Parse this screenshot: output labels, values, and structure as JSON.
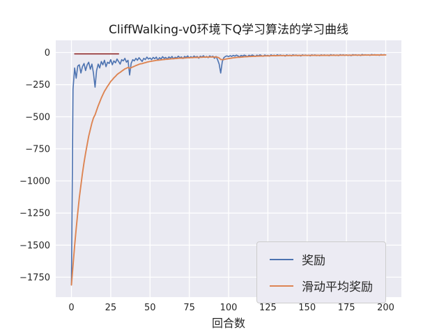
{
  "chart_data": {
    "type": "line",
    "title": "CliffWalking-v0环境下Q学习算法的学习曲线",
    "xlabel": "回合数",
    "ylabel": "",
    "xlim": [
      -10,
      210
    ],
    "ylim": [
      -1905,
      95
    ],
    "xticks": [
      0,
      25,
      50,
      75,
      100,
      125,
      150,
      175,
      200
    ],
    "yticks": [
      0,
      -250,
      -500,
      -750,
      -1000,
      -1250,
      -1500,
      -1750
    ],
    "grid": true,
    "legend_position": "lower right",
    "colors": {
      "axes_background": "#eaeaf2",
      "grid": "#ffffff"
    },
    "series": [
      {
        "name": "奖励",
        "color": "#4c72b0",
        "x_start": 0,
        "x_step": 1,
        "values": [
          -1810,
          -285,
          -120,
          -200,
          -105,
          -95,
          -160,
          -110,
          -85,
          -140,
          -95,
          -75,
          -130,
          -90,
          -160,
          -270,
          -140,
          -90,
          -120,
          -70,
          -95,
          -60,
          -110,
          -75,
          -85,
          -55,
          -95,
          -65,
          -80,
          -50,
          -70,
          -90,
          -55,
          -65,
          -45,
          -75,
          -60,
          -175,
          -85,
          -55,
          -65,
          -45,
          -60,
          -40,
          -55,
          -70,
          -45,
          -55,
          -35,
          -50,
          -42,
          -55,
          -38,
          -48,
          -35,
          -60,
          -40,
          -50,
          -32,
          -45,
          -38,
          -52,
          -34,
          -44,
          -30,
          -48,
          -36,
          -42,
          -28,
          -40,
          -34,
          -46,
          -30,
          -38,
          -26,
          -42,
          -32,
          -40,
          -27,
          -36,
          -30,
          -44,
          -28,
          -35,
          -25,
          -38,
          -30,
          -40,
          -26,
          -34,
          -28,
          -45,
          -30,
          -55,
          -90,
          -160,
          -70,
          -40,
          -30,
          -26,
          -32,
          -24,
          -30,
          -22,
          -28,
          -20,
          -26,
          -34,
          -22,
          -28,
          -20,
          -25,
          -32,
          -21,
          -27,
          -19,
          -24,
          -30,
          -20,
          -26,
          -18,
          -23,
          -29,
          -19,
          -25,
          -21,
          -28,
          -18,
          -24,
          -20,
          -26,
          -17,
          -23,
          -19,
          -25,
          -21,
          -28,
          -18,
          -24,
          -20,
          -26,
          -17,
          -22,
          -19,
          -25,
          -21,
          -27,
          -17,
          -23,
          -19,
          -24,
          -20,
          -26,
          -17,
          -22,
          -18,
          -24,
          -20,
          -25,
          -17,
          -22,
          -18,
          -23,
          -19,
          -25,
          -16,
          -21,
          -18,
          -23,
          -19,
          -24,
          -16,
          -21,
          -17,
          -22,
          -18,
          -23,
          -19,
          -24,
          -16,
          -20,
          -17,
          -22,
          -18,
          -23,
          -15,
          -20,
          -17,
          -21,
          -18,
          -22,
          -15,
          -19,
          -16,
          -21,
          -17,
          -22,
          -15,
          -19,
          -16,
          -18
        ]
      },
      {
        "name": "滑动平均奖励",
        "color": "#dd8452",
        "derived": "ewma_of_series_0",
        "alpha": 0.1
      },
      {
        "name": "",
        "color": "#8f2727",
        "in_legend": false,
        "x": [
          2,
          30
        ],
        "values": [
          -10,
          -10
        ]
      }
    ]
  }
}
